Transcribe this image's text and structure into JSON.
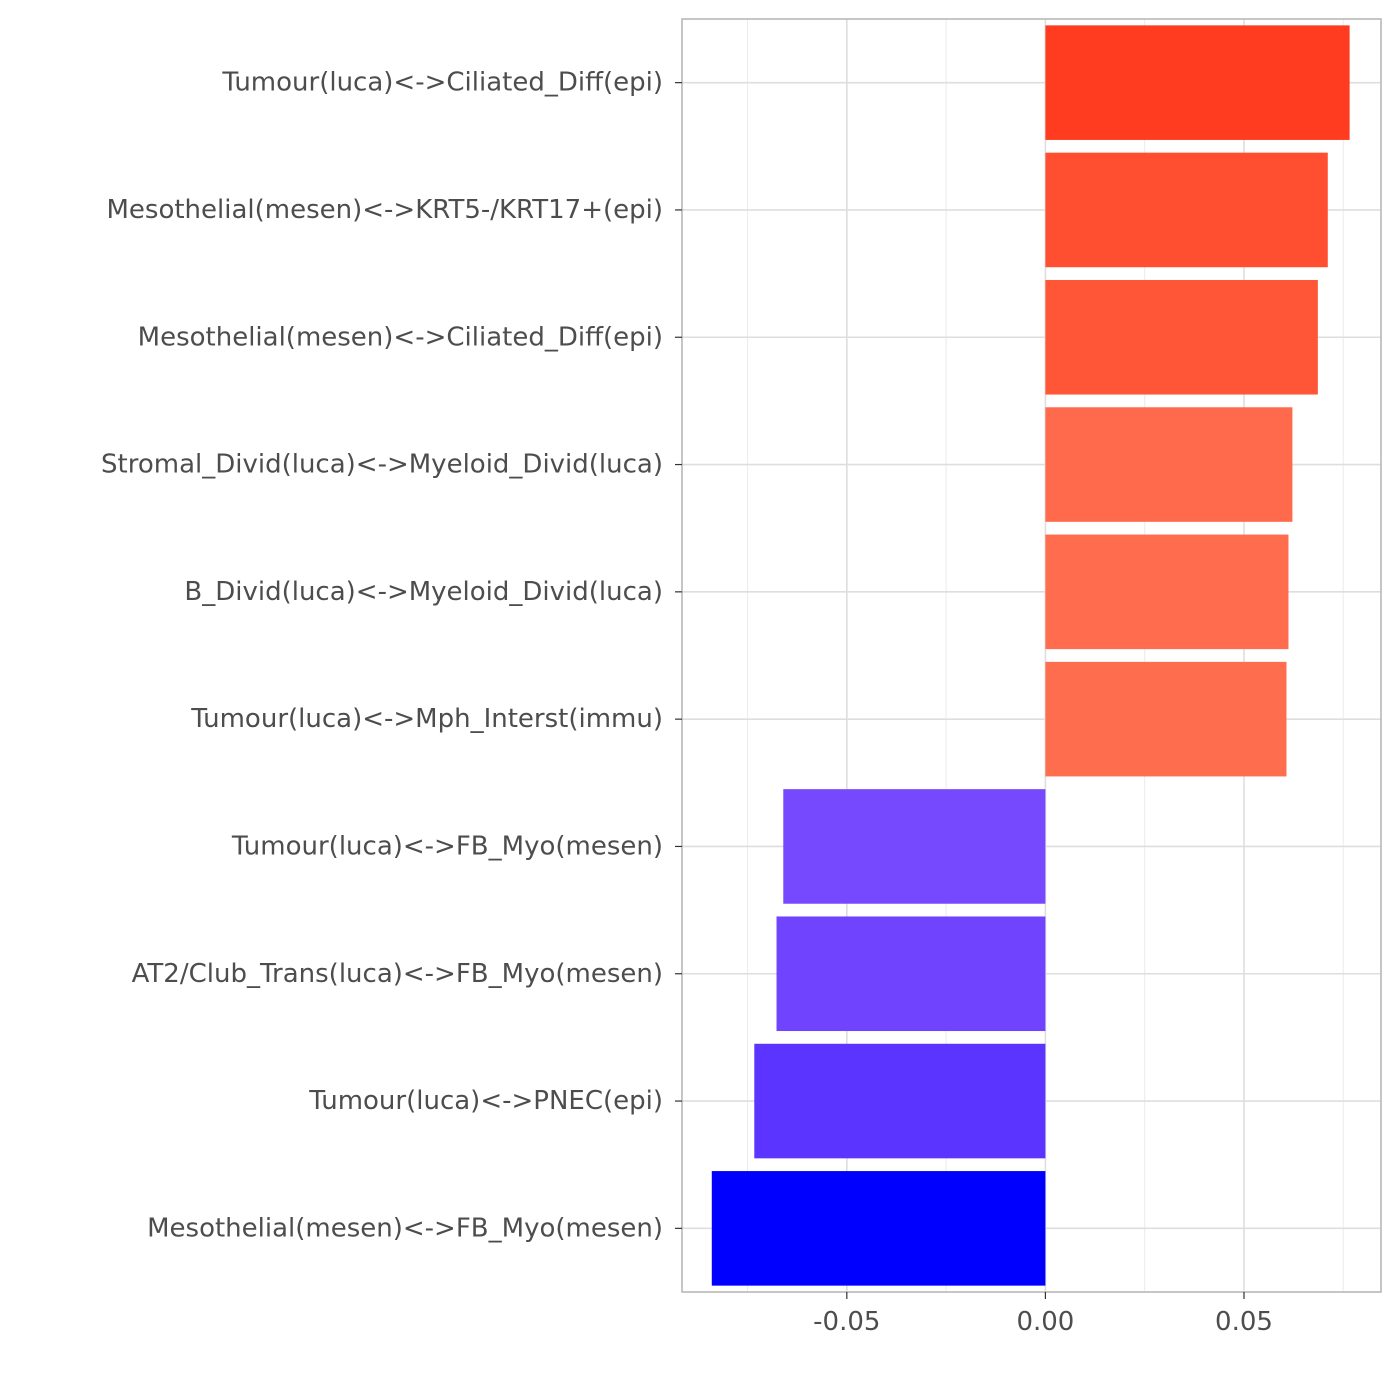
{
  "chart_data": {
    "type": "bar",
    "orientation": "horizontal",
    "categories": [
      "Tumour(luca)<->Ciliated_Diff(epi)",
      "Mesothelial(mesen)<->KRT5-/KRT17+(epi)",
      "Mesothelial(mesen)<->Ciliated_Diff(epi)",
      "Stromal_Divid(luca)<->Myeloid_Divid(luca)",
      "B_Divid(luca)<->Myeloid_Divid(luca)",
      "Tumour(luca)<->Mph_Interst(immu)",
      "Tumour(luca)<->FB_Myo(mesen)",
      "AT2/Club_Trans(luca)<->FB_Myo(mesen)",
      "Tumour(luca)<->PNEC(epi)",
      "Mesothelial(mesen)<->FB_Myo(mesen)"
    ],
    "values": [
      0.0766,
      0.0711,
      0.0686,
      0.0622,
      0.0612,
      0.0607,
      -0.066,
      -0.0677,
      -0.0733,
      -0.084
    ],
    "colors": [
      "#ff3b20",
      "#ff4e30",
      "#ff5638",
      "#ff6a4c",
      "#ff6c4e",
      "#ff6d4f",
      "#7649ff",
      "#7043ff",
      "#5b35ff",
      "#0000ff"
    ],
    "xlim": [
      -0.0915,
      0.0845
    ],
    "xticks": [
      -0.05,
      0.0,
      0.05
    ],
    "xtick_labels": [
      "-0.05",
      "0.00",
      "0.05"
    ],
    "grid": true,
    "title": "",
    "xlabel": "",
    "ylabel": ""
  }
}
